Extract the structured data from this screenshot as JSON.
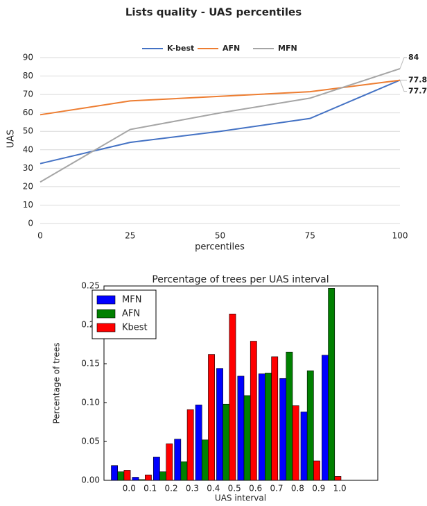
{
  "chart_data": [
    {
      "type": "line",
      "title": "Lists quality - UAS percentiles",
      "x": [
        0,
        25,
        50,
        75,
        100
      ],
      "series": [
        {
          "name": "K-best",
          "color": "#4472c4",
          "values": [
            32.5,
            44,
            50,
            57,
            77.8
          ],
          "value_labels": [
            null,
            null,
            null,
            null,
            "77.8"
          ]
        },
        {
          "name": "AFN",
          "color": "#ed7d31",
          "values": [
            59,
            66.5,
            69,
            71.5,
            77.7
          ],
          "value_labels": [
            null,
            null,
            null,
            null,
            "77.7"
          ]
        },
        {
          "name": "MFN",
          "color": "#a5a5a5",
          "values": [
            22.5,
            51,
            60,
            68,
            84
          ],
          "value_labels": [
            null,
            null,
            null,
            null,
            "84"
          ]
        }
      ],
      "xlim": [
        0,
        100
      ],
      "xticks": [
        0,
        25,
        50,
        75,
        100
      ],
      "ylim": [
        0,
        90
      ],
      "yticks": [
        0,
        10,
        20,
        30,
        40,
        50,
        60,
        70,
        80,
        90
      ],
      "x_label": "percentiles",
      "y_label": "UAS",
      "grid": true,
      "legend": "top"
    },
    {
      "type": "bar",
      "title": "Percentage of trees per UAS interval",
      "categories": [
        "0.0",
        "0.1",
        "0.2",
        "0.3",
        "0.4",
        "0.5",
        "0.6",
        "0.7",
        "0.8",
        "0.9",
        "1.0"
      ],
      "series": [
        {
          "name": "MFN",
          "color": "#0000ff",
          "values": [
            0.019,
            0.004,
            0.03,
            0.053,
            0.097,
            0.144,
            0.134,
            0.137,
            0.131,
            0.088,
            0.161
          ]
        },
        {
          "name": "AFN",
          "color": "#008000",
          "values": [
            0.011,
            0.001,
            0.011,
            0.024,
            0.052,
            0.098,
            0.109,
            0.138,
            0.165,
            0.141,
            0.247
          ]
        },
        {
          "name": "Kbest",
          "color": "#ff0000",
          "values": [
            0.013,
            0.007,
            0.047,
            0.091,
            0.162,
            0.214,
            0.179,
            0.159,
            0.096,
            0.025,
            0.005
          ]
        }
      ],
      "ylim": [
        0,
        0.25
      ],
      "yticks": [
        {
          "value": 0,
          "label": "0.00"
        },
        {
          "value": 0.05,
          "label": "0.05"
        },
        {
          "value": 0.1,
          "label": "0.10"
        },
        {
          "value": 0.15,
          "label": "0.15"
        },
        {
          "value": 0.2,
          "label": "0.20"
        },
        {
          "value": 0.25,
          "label": "0.25"
        }
      ],
      "x_label": "UAS interval",
      "y_label": "Percentage of trees",
      "grid": false,
      "legend": "upper left"
    }
  ]
}
